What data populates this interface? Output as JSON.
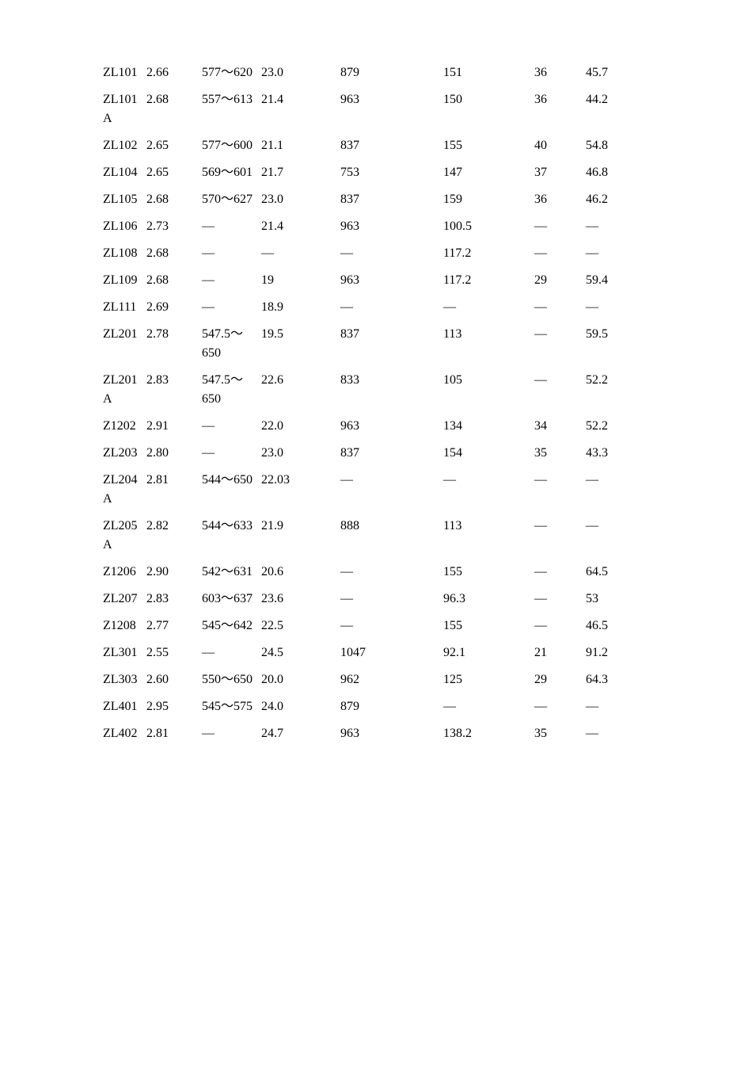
{
  "table": {
    "columns": [
      {
        "key": "label",
        "class": "col-label"
      },
      {
        "key": "ratio",
        "class": "col-ratio"
      },
      {
        "key": "melt",
        "class": "col-melt"
      },
      {
        "key": "v1",
        "class": "col-v1"
      },
      {
        "key": "v2",
        "class": "col-v2"
      },
      {
        "key": "v3",
        "class": "col-v3"
      },
      {
        "key": "v4",
        "class": "col-v4"
      },
      {
        "key": "v5",
        "class": "col-v5"
      }
    ],
    "rows": [
      {
        "label": "ZL101",
        "ratio": "2.66",
        "melt": "577～620",
        "v1": "23.0",
        "v2": "879",
        "v3": "151",
        "v4": "36",
        "v5": "45.7"
      },
      {
        "label": "ZL101A",
        "ratio": "2.68",
        "melt": "557～613",
        "v1": "21.4",
        "v2": "963",
        "v3": "150",
        "v4": "36",
        "v5": "44.2"
      },
      {
        "label": "ZL102",
        "ratio": "2.65",
        "melt": "577～600",
        "v1": "21.1",
        "v2": "837",
        "v3": "155",
        "v4": "40",
        "v5": "54.8"
      },
      {
        "label": "ZL104",
        "ratio": "2.65",
        "melt": "569～601",
        "v1": "21.7",
        "v2": "753",
        "v3": "147",
        "v4": "37",
        "v5": "46.8"
      },
      {
        "label": "ZL105",
        "ratio": "2.68",
        "melt": "570～627",
        "v1": "23.0",
        "v2": "837",
        "v3": "159",
        "v4": "36",
        "v5": "46.2"
      },
      {
        "label": "ZL106",
        "ratio": "2.73",
        "melt": "—",
        "v1": "21.4",
        "v2": "963",
        "v3": "100.5",
        "v4": "—",
        "v5": "—"
      },
      {
        "label": "ZL108",
        "ratio": "2.68",
        "melt": "—",
        "v1": "—",
        "v2": "—",
        "v3": "117.2",
        "v4": "—",
        "v5": "—"
      },
      {
        "label": "ZL109",
        "ratio": "2.68",
        "melt": "—",
        "v1": "19",
        "v2": "963",
        "v3": "117.2",
        "v4": "29",
        "v5": "59.4"
      },
      {
        "label": "ZL111",
        "ratio": "2.69",
        "melt": "—",
        "v1": "18.9",
        "v2": "—",
        "v3": "—",
        "v4": "—",
        "v5": "—"
      },
      {
        "label": "ZL201",
        "ratio": "2.78",
        "melt": "547.5～650",
        "v1": "19.5",
        "v2": "837",
        "v3": "113",
        "v4": "—",
        "v5": "59.5"
      },
      {
        "label": "ZL201A",
        "ratio": "2.83",
        "melt": "547.5～650",
        "v1": "22.6",
        "v2": "833",
        "v3": "105",
        "v4": "—",
        "v5": "52.2"
      },
      {
        "label": "Z1202",
        "ratio": "2.91",
        "melt": "—",
        "v1": "22.0",
        "v2": "963",
        "v3": "134",
        "v4": "34",
        "v5": "52.2"
      },
      {
        "label": "ZL203",
        "ratio": "2.80",
        "melt": "—",
        "v1": "23.0",
        "v2": "837",
        "v3": "154",
        "v4": "35",
        "v5": "43.3"
      },
      {
        "label": "ZL204A",
        "ratio": "2.81",
        "melt": "544～650",
        "v1": "22.03",
        "v2": "—",
        "v3": "—",
        "v4": "—",
        "v5": "—"
      },
      {
        "label": "ZL205A",
        "ratio": "2.82",
        "melt": "544～633",
        "v1": "21.9",
        "v2": "888",
        "v3": "113",
        "v4": "—",
        "v5": "—"
      },
      {
        "label": "Z1206",
        "ratio": "2.90",
        "melt": "542～631",
        "v1": "20.6",
        "v2": "—",
        "v3": "155",
        "v4": "—",
        "v5": "64.5"
      },
      {
        "label": "ZL207",
        "ratio": "2.83",
        "melt": "603～637",
        "v1": "23.6",
        "v2": "—",
        "v3": "96.3",
        "v4": "—",
        "v5": "53"
      },
      {
        "label": "Z1208",
        "ratio": "2.77",
        "melt": "545～642",
        "v1": "22.5",
        "v2": "—",
        "v3": "155",
        "v4": "—",
        "v5": "46.5"
      },
      {
        "label": "ZL301",
        "ratio": "2.55",
        "melt": "—",
        "v1": "24.5",
        "v2": "1047",
        "v3": "92.1",
        "v4": "21",
        "v5": "91.2"
      },
      {
        "label": "ZL303",
        "ratio": "2.60",
        "melt": "550～650",
        "v1": "20.0",
        "v2": "962",
        "v3": "125",
        "v4": "29",
        "v5": "64.3"
      },
      {
        "label": "ZL401",
        "ratio": "2.95",
        "melt": "545～575",
        "v1": "24.0",
        "v2": "879",
        "v3": "—",
        "v4": "—",
        "v5": "—"
      },
      {
        "label": "ZL402",
        "ratio": "2.81",
        "melt": "—",
        "v1": "24.7",
        "v2": "963",
        "v3": "138.2",
        "v4": "35",
        "v5": "—"
      }
    ],
    "font_family": "SimSun",
    "font_size_pt": 12,
    "background_color": "#ffffff",
    "text_color": "#000000"
  }
}
